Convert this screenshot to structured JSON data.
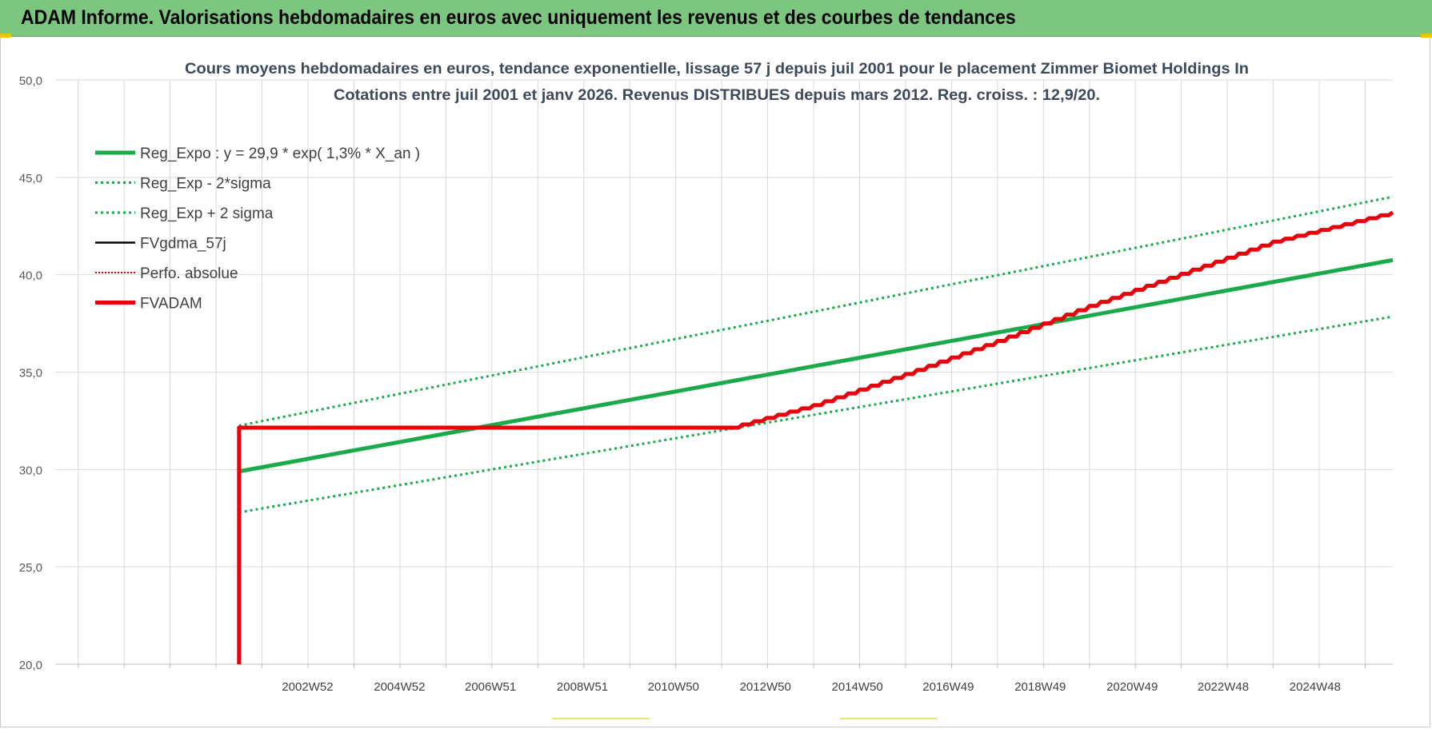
{
  "banner": {
    "title": "ADAM Informe. Valorisations hebdomadaires en euros avec uniquement les revenus et des courbes de tendances"
  },
  "chart_data": {
    "type": "line",
    "title_lines": [
      "Cours moyens hebdomadaires en euros, tendance exponentielle, lissage 57 j depuis juil 2001 pour le placement Zimmer Biomet Holdings In",
      "Cotations entre juil 2001 et janv 2026. Revenus DISTRIBUES depuis mars 2012. Reg. croiss. : 12,9/20."
    ],
    "xlabel": "",
    "ylabel": "",
    "ylim": [
      20,
      50
    ],
    "xlim": [
      1997.5,
      2026.6
    ],
    "y_ticks": [
      "20,0",
      "25,0",
      "30,0",
      "35,0",
      "40,0",
      "45,0",
      "50,0"
    ],
    "x_tick_labels": [
      {
        "label": "2002W52",
        "x": 2002.99
      },
      {
        "label": "2004W52",
        "x": 2004.99
      },
      {
        "label": "2006W51",
        "x": 2006.97
      },
      {
        "label": "2008W51",
        "x": 2008.97
      },
      {
        "label": "2010W50",
        "x": 2010.95
      },
      {
        "label": "2012W50",
        "x": 2012.95
      },
      {
        "label": "2014W50",
        "x": 2014.95
      },
      {
        "label": "2016W49",
        "x": 2016.93
      },
      {
        "label": "2018W49",
        "x": 2018.93
      },
      {
        "label": "2020W49",
        "x": 2020.93
      },
      {
        "label": "2022W48",
        "x": 2022.91
      },
      {
        "label": "2024W48",
        "x": 2024.91
      }
    ],
    "grid": true,
    "legend_position": "top-left",
    "series": [
      {
        "name": "Reg_Expo : y = 29,9 * exp( 1,3% *  X_an )",
        "style": "solid-thick",
        "color": "#1aaa4a",
        "points": [
          [
            2001.5,
            29.9
          ],
          [
            2026.6,
            40.75
          ]
        ]
      },
      {
        "name": "Reg_Exp - 2*sigma",
        "style": "dotted",
        "color": "#1aaa4a",
        "points": [
          [
            2001.5,
            27.8
          ],
          [
            2026.6,
            37.85
          ]
        ]
      },
      {
        "name": "Reg_Exp + 2 sigma",
        "style": "dotted",
        "color": "#1aaa4a",
        "points": [
          [
            2001.5,
            32.25
          ],
          [
            2026.6,
            44.0
          ]
        ]
      },
      {
        "name": "FVgdma_57j",
        "style": "solid",
        "color": "#000000",
        "points": []
      },
      {
        "name": "Perfo. absolue",
        "style": "dotted-thin",
        "color": "#e8000b",
        "points": []
      },
      {
        "name": "FVADAM",
        "style": "solid-thick",
        "color": "#e8000b",
        "points": [
          [
            2001.5,
            20.0
          ],
          [
            2001.5,
            32.15
          ],
          [
            2012.2,
            32.15
          ],
          [
            2014.0,
            33.3
          ],
          [
            2016.0,
            34.9
          ],
          [
            2018.0,
            36.6
          ],
          [
            2020.0,
            38.4
          ],
          [
            2022.0,
            40.05
          ],
          [
            2024.0,
            41.7
          ],
          [
            2026.6,
            43.2
          ]
        ]
      }
    ]
  }
}
